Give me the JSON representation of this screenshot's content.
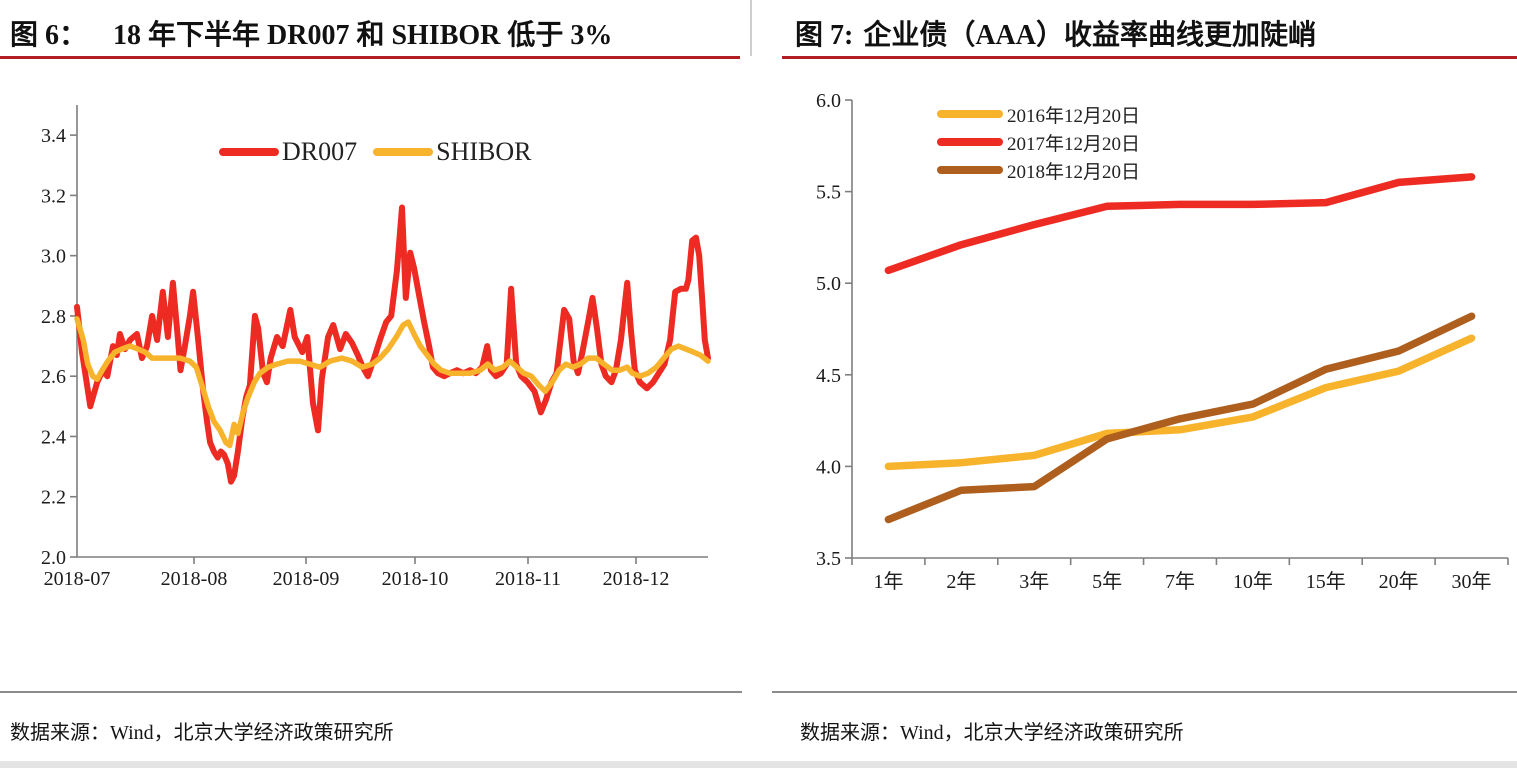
{
  "colors": {
    "dr007_red": "#EE2B23",
    "shibor_gold": "#F7B32B",
    "brown_2018": "#AE5F1E",
    "title_rule_red": "#B01E23",
    "axis_gray": "#7F7F7F",
    "divider_gray": "#8C8C8C",
    "bottom_bar_gray": "#E4E4E4"
  },
  "left_panel": {
    "figure_label": "图 6：",
    "title": "18 年下半年 DR007 和 SHIBOR 低于 3%",
    "source": "数据来源：Wind，北京大学经济政策研究所"
  },
  "right_panel": {
    "figure_label": "图 7:",
    "title": "企业债（AAA）收益率曲线更加陡峭",
    "source": "数据来源：Wind，北京大学经济政策研究所"
  },
  "chart_data": [
    {
      "type": "line",
      "title": "18 年下半年 DR007 和 SHIBOR 低于 3%",
      "x_tick_labels": [
        "2018-07",
        "2018-08",
        "2018-09",
        "2018-10",
        "2018-11",
        "2018-12"
      ],
      "x_encoding": "point = [percent of time axis from 2018-07-01 to late 2018-12, rate %]",
      "ylim": [
        2.0,
        3.5
      ],
      "yticks": [
        2.0,
        2.2,
        2.4,
        2.6,
        2.8,
        3.0,
        3.2,
        3.4
      ],
      "legend_position": "top-center",
      "series": [
        {
          "name": "DR007",
          "color": "#EE2B23",
          "points": [
            [
              0,
              2.83
            ],
            [
              0.8,
              2.68
            ],
            [
              2.1,
              2.5
            ],
            [
              3.2,
              2.58
            ],
            [
              4.1,
              2.62
            ],
            [
              4.8,
              2.6
            ],
            [
              5.7,
              2.7
            ],
            [
              6.3,
              2.67
            ],
            [
              6.8,
              2.74
            ],
            [
              7.6,
              2.69
            ],
            [
              8.4,
              2.72
            ],
            [
              9.5,
              2.74
            ],
            [
              10.3,
              2.66
            ],
            [
              11.1,
              2.7
            ],
            [
              11.9,
              2.8
            ],
            [
              12.7,
              2.72
            ],
            [
              13.6,
              2.88
            ],
            [
              14.4,
              2.73
            ],
            [
              15.2,
              2.91
            ],
            [
              16,
              2.72
            ],
            [
              16.4,
              2.62
            ],
            [
              17.1,
              2.7
            ],
            [
              17.9,
              2.8
            ],
            [
              18.4,
              2.88
            ],
            [
              19.2,
              2.72
            ],
            [
              20,
              2.55
            ],
            [
              20.6,
              2.45
            ],
            [
              21.1,
              2.38
            ],
            [
              21.7,
              2.35
            ],
            [
              22.3,
              2.33
            ],
            [
              22.8,
              2.35
            ],
            [
              23.3,
              2.34
            ],
            [
              23.9,
              2.31
            ],
            [
              24.4,
              2.25
            ],
            [
              24.9,
              2.27
            ],
            [
              25.5,
              2.35
            ],
            [
              26.2,
              2.46
            ],
            [
              26.8,
              2.53
            ],
            [
              27.4,
              2.57
            ],
            [
              28.2,
              2.8
            ],
            [
              28.7,
              2.76
            ],
            [
              29.5,
              2.61
            ],
            [
              30.1,
              2.58
            ],
            [
              30.7,
              2.66
            ],
            [
              31.7,
              2.73
            ],
            [
              32.6,
              2.7
            ],
            [
              33.8,
              2.82
            ],
            [
              34.5,
              2.73
            ],
            [
              35.7,
              2.68
            ],
            [
              36.5,
              2.73
            ],
            [
              37.4,
              2.51
            ],
            [
              38.2,
              2.42
            ],
            [
              38.8,
              2.59
            ],
            [
              39.8,
              2.73
            ],
            [
              40.6,
              2.77
            ],
            [
              41.7,
              2.69
            ],
            [
              42.6,
              2.74
            ],
            [
              43.6,
              2.71
            ],
            [
              44.5,
              2.67
            ],
            [
              45.3,
              2.63
            ],
            [
              46.1,
              2.6
            ],
            [
              47.1,
              2.66
            ],
            [
              48,
              2.72
            ],
            [
              49,
              2.78
            ],
            [
              49.8,
              2.8
            ],
            [
              50.7,
              2.95
            ],
            [
              51.5,
              3.16
            ],
            [
              52.1,
              2.86
            ],
            [
              52.8,
              3.01
            ],
            [
              53.4,
              2.96
            ],
            [
              54.2,
              2.87
            ],
            [
              55,
              2.78
            ],
            [
              55.8,
              2.7
            ],
            [
              56.4,
              2.63
            ],
            [
              57.2,
              2.61
            ],
            [
              58.2,
              2.6
            ],
            [
              59.1,
              2.61
            ],
            [
              60.2,
              2.62
            ],
            [
              61.2,
              2.61
            ],
            [
              62.3,
              2.62
            ],
            [
              63.2,
              2.61
            ],
            [
              64.2,
              2.63
            ],
            [
              65,
              2.7
            ],
            [
              65.6,
              2.62
            ],
            [
              66.4,
              2.6
            ],
            [
              67.2,
              2.61
            ],
            [
              68.1,
              2.64
            ],
            [
              68.8,
              2.89
            ],
            [
              69.6,
              2.64
            ],
            [
              70.4,
              2.6
            ],
            [
              71.4,
              2.58
            ],
            [
              72.5,
              2.55
            ],
            [
              73.5,
              2.48
            ],
            [
              74.3,
              2.52
            ],
            [
              75.2,
              2.58
            ],
            [
              76,
              2.61
            ],
            [
              77.2,
              2.82
            ],
            [
              78,
              2.79
            ],
            [
              78.7,
              2.65
            ],
            [
              79.4,
              2.61
            ],
            [
              80.1,
              2.68
            ],
            [
              81,
              2.78
            ],
            [
              81.7,
              2.86
            ],
            [
              82.4,
              2.76
            ],
            [
              83.1,
              2.64
            ],
            [
              83.8,
              2.6
            ],
            [
              84.7,
              2.58
            ],
            [
              85.4,
              2.62
            ],
            [
              86.2,
              2.72
            ],
            [
              87.2,
              2.91
            ],
            [
              87.8,
              2.75
            ],
            [
              88.4,
              2.62
            ],
            [
              89.2,
              2.58
            ],
            [
              90.3,
              2.56
            ],
            [
              91.3,
              2.58
            ],
            [
              92.2,
              2.61
            ],
            [
              93.1,
              2.64
            ],
            [
              94,
              2.72
            ],
            [
              94.8,
              2.88
            ],
            [
              95.7,
              2.89
            ],
            [
              96.5,
              2.89
            ],
            [
              96.9,
              2.92
            ],
            [
              97.5,
              3.05
            ],
            [
              98.1,
              3.06
            ],
            [
              98.6,
              3.0
            ],
            [
              99.1,
              2.85
            ],
            [
              99.5,
              2.72
            ],
            [
              100,
              2.66
            ]
          ]
        },
        {
          "name": "SHIBOR",
          "color": "#F7B32B",
          "points": [
            [
              0,
              2.79
            ],
            [
              1,
              2.72
            ],
            [
              1.7,
              2.64
            ],
            [
              2.5,
              2.6
            ],
            [
              3.2,
              2.59
            ],
            [
              4,
              2.62
            ],
            [
              4.9,
              2.65
            ],
            [
              6,
              2.68
            ],
            [
              7.1,
              2.69
            ],
            [
              8.4,
              2.7
            ],
            [
              9.7,
              2.69
            ],
            [
              10.8,
              2.68
            ],
            [
              11.9,
              2.66
            ],
            [
              13.2,
              2.66
            ],
            [
              14.7,
              2.66
            ],
            [
              16.3,
              2.66
            ],
            [
              17.9,
              2.65
            ],
            [
              18.9,
              2.63
            ],
            [
              19.8,
              2.57
            ],
            [
              20.8,
              2.5
            ],
            [
              21.7,
              2.45
            ],
            [
              22.7,
              2.42
            ],
            [
              23.6,
              2.38
            ],
            [
              24.2,
              2.37
            ],
            [
              24.9,
              2.44
            ],
            [
              25.5,
              2.41
            ],
            [
              26.3,
              2.48
            ],
            [
              27.1,
              2.53
            ],
            [
              28.1,
              2.58
            ],
            [
              29,
              2.61
            ],
            [
              30.3,
              2.63
            ],
            [
              31.7,
              2.64
            ],
            [
              33.4,
              2.65
            ],
            [
              35.3,
              2.65
            ],
            [
              36.9,
              2.64
            ],
            [
              38.5,
              2.63
            ],
            [
              40.1,
              2.65
            ],
            [
              42,
              2.66
            ],
            [
              43.6,
              2.65
            ],
            [
              45.2,
              2.63
            ],
            [
              46.8,
              2.64
            ],
            [
              48,
              2.66
            ],
            [
              49.3,
              2.69
            ],
            [
              50.6,
              2.73
            ],
            [
              51.7,
              2.77
            ],
            [
              52.5,
              2.78
            ],
            [
              53.4,
              2.74
            ],
            [
              54.4,
              2.7
            ],
            [
              55.5,
              2.67
            ],
            [
              56.6,
              2.64
            ],
            [
              57.7,
              2.62
            ],
            [
              59.1,
              2.61
            ],
            [
              60.7,
              2.61
            ],
            [
              62.3,
              2.61
            ],
            [
              63.9,
              2.62
            ],
            [
              65.1,
              2.64
            ],
            [
              66.2,
              2.62
            ],
            [
              67.5,
              2.63
            ],
            [
              68.6,
              2.65
            ],
            [
              69.7,
              2.63
            ],
            [
              70.8,
              2.61
            ],
            [
              72,
              2.6
            ],
            [
              73.2,
              2.57
            ],
            [
              74.2,
              2.55
            ],
            [
              75.3,
              2.58
            ],
            [
              76.4,
              2.62
            ],
            [
              77.5,
              2.64
            ],
            [
              78.6,
              2.63
            ],
            [
              79.8,
              2.64
            ],
            [
              81,
              2.66
            ],
            [
              82.3,
              2.66
            ],
            [
              83.5,
              2.64
            ],
            [
              84.8,
              2.62
            ],
            [
              86,
              2.62
            ],
            [
              87.2,
              2.63
            ],
            [
              88,
              2.61
            ],
            [
              89.2,
              2.6
            ],
            [
              90.5,
              2.61
            ],
            [
              91.8,
              2.63
            ],
            [
              93,
              2.66
            ],
            [
              94.2,
              2.69
            ],
            [
              95.3,
              2.7
            ],
            [
              96.5,
              2.69
            ],
            [
              97.7,
              2.68
            ],
            [
              98.8,
              2.67
            ],
            [
              100,
              2.65
            ]
          ]
        }
      ]
    },
    {
      "type": "line",
      "title": "企业债（AAA）收益率曲线更加陡峭",
      "categories": [
        "1年",
        "2年",
        "3年",
        "5年",
        "7年",
        "10年",
        "15年",
        "20年",
        "30年"
      ],
      "ylim": [
        3.5,
        6.0
      ],
      "yticks": [
        3.5,
        4.0,
        4.5,
        5.0,
        5.5,
        6.0
      ],
      "legend_position": "top-left-inside",
      "series": [
        {
          "name": "2016年12月20日",
          "color": "#F7B32B",
          "values": [
            4.0,
            4.02,
            4.06,
            4.18,
            4.2,
            4.27,
            4.43,
            4.52,
            4.7
          ]
        },
        {
          "name": "2017年12月20日",
          "color": "#EE2B23",
          "values": [
            5.07,
            5.21,
            5.32,
            5.42,
            5.43,
            5.43,
            5.44,
            5.55,
            5.58
          ]
        },
        {
          "name": "2018年12月20日",
          "color": "#AE5F1E",
          "values": [
            3.71,
            3.87,
            3.89,
            4.15,
            4.26,
            4.34,
            4.53,
            4.63,
            4.82
          ]
        }
      ]
    }
  ]
}
